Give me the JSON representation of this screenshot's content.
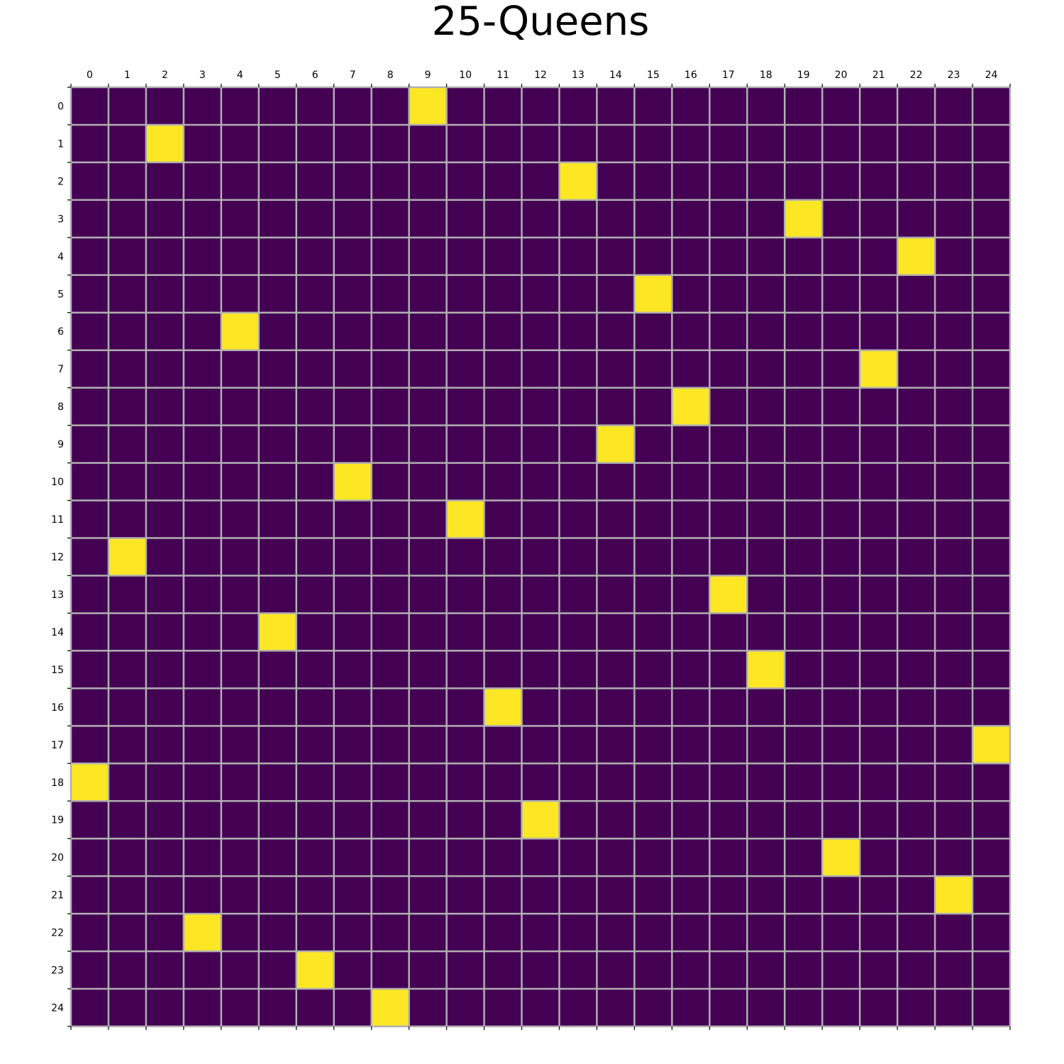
{
  "chart_data": {
    "type": "heatmap",
    "title": "25-Queens",
    "n": 25,
    "x_ticks": [
      "0",
      "1",
      "2",
      "3",
      "4",
      "5",
      "6",
      "7",
      "8",
      "9",
      "10",
      "11",
      "12",
      "13",
      "14",
      "15",
      "16",
      "17",
      "18",
      "19",
      "20",
      "21",
      "22",
      "23",
      "24"
    ],
    "y_ticks": [
      "0",
      "1",
      "2",
      "3",
      "4",
      "5",
      "6",
      "7",
      "8",
      "9",
      "10",
      "11",
      "12",
      "13",
      "14",
      "15",
      "16",
      "17",
      "18",
      "19",
      "20",
      "21",
      "22",
      "23",
      "24"
    ],
    "x_tick_position": "top",
    "grid": true,
    "queens": [
      {
        "row": 0,
        "col": 9
      },
      {
        "row": 1,
        "col": 2
      },
      {
        "row": 2,
        "col": 13
      },
      {
        "row": 3,
        "col": 19
      },
      {
        "row": 4,
        "col": 22
      },
      {
        "row": 5,
        "col": 15
      },
      {
        "row": 6,
        "col": 4
      },
      {
        "row": 7,
        "col": 21
      },
      {
        "row": 8,
        "col": 16
      },
      {
        "row": 9,
        "col": 14
      },
      {
        "row": 10,
        "col": 7
      },
      {
        "row": 11,
        "col": 10
      },
      {
        "row": 12,
        "col": 1
      },
      {
        "row": 13,
        "col": 17
      },
      {
        "row": 14,
        "col": 5
      },
      {
        "row": 15,
        "col": 18
      },
      {
        "row": 16,
        "col": 11
      },
      {
        "row": 17,
        "col": 24
      },
      {
        "row": 18,
        "col": 0
      },
      {
        "row": 19,
        "col": 12
      },
      {
        "row": 20,
        "col": 20
      },
      {
        "row": 21,
        "col": 23
      },
      {
        "row": 22,
        "col": 3
      },
      {
        "row": 23,
        "col": 6
      },
      {
        "row": 24,
        "col": 8
      }
    ],
    "colors": {
      "empty": "#440154",
      "queen": "#fde725",
      "grid": "#b0b0b0",
      "axis": "#000000"
    }
  }
}
